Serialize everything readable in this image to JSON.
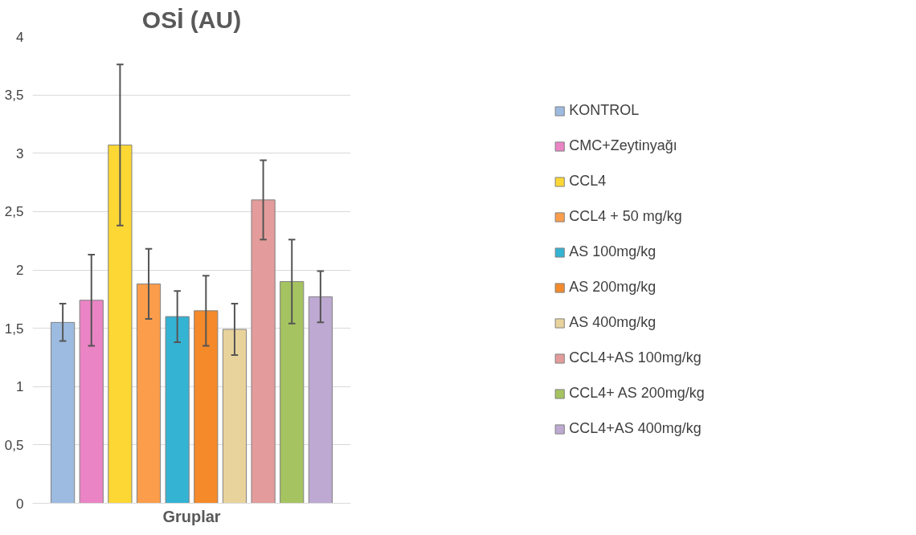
{
  "chart_data": {
    "type": "bar",
    "title": "OSİ (AU)",
    "xlabel": "Gruplar",
    "categories": [
      null
    ],
    "series": [
      {
        "name": "KONTROL",
        "color": "#9dbbe0",
        "values": [
          1.55
        ],
        "errors": [
          0.16
        ]
      },
      {
        "name": "CMC+Zeytinyağı",
        "color": "#ea84c4",
        "values": [
          1.74
        ],
        "errors": [
          0.39
        ]
      },
      {
        "name": "CCL4",
        "color": "#fdd835",
        "values": [
          3.07
        ],
        "errors": [
          0.69
        ]
      },
      {
        "name": "CCL4 + 50 mg/kg",
        "color": "#fb9d4b",
        "values": [
          1.88
        ],
        "errors": [
          0.3
        ]
      },
      {
        "name": "AS 100mg/kg",
        "color": "#35b3d3",
        "values": [
          1.6
        ],
        "errors": [
          0.22
        ]
      },
      {
        "name": "AS 200mg/kg",
        "color": "#f58a2a",
        "values": [
          1.65
        ],
        "errors": [
          0.3
        ]
      },
      {
        "name": "AS 400mg/kg",
        "color": "#e9d39c",
        "values": [
          1.49
        ],
        "errors": [
          0.22
        ]
      },
      {
        "name": "CCL4+AS 100mg/kg",
        "color": "#e39c9b",
        "values": [
          2.6
        ],
        "errors": [
          0.34
        ]
      },
      {
        "name": "CCL4+ AS 200mg/kg",
        "color": "#a5c461",
        "values": [
          1.9
        ],
        "errors": [
          0.36
        ]
      },
      {
        "name": "CCL4+AS 400mg/kg",
        "color": "#bda9d2",
        "values": [
          1.77
        ],
        "errors": [
          0.22
        ]
      }
    ],
    "ylim": [
      0,
      4
    ],
    "yticks": [
      0,
      {
        "value": 0.5,
        "label": "0,5"
      },
      1,
      {
        "value": 1.5,
        "label": "1,5"
      },
      2,
      {
        "value": 2.5,
        "label": "2,5"
      },
      3,
      {
        "value": 3.5,
        "label": "3,5"
      },
      4
    ],
    "grid": "y",
    "legend": "right"
  }
}
